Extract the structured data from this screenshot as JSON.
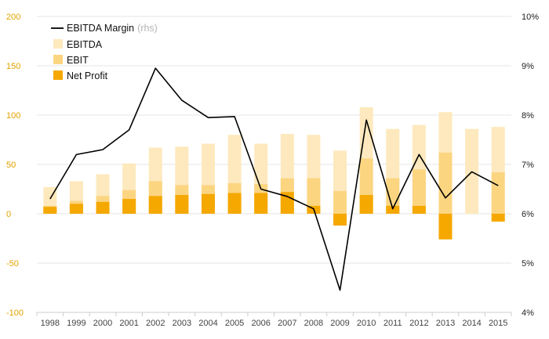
{
  "chart_data": {
    "type": "bar",
    "stacking": "overlap",
    "categories": [
      "1998",
      "1999",
      "2000",
      "2001",
      "2002",
      "2003",
      "2004",
      "2005",
      "2006",
      "2007",
      "2008",
      "2009",
      "2010",
      "2011",
      "2012",
      "2013",
      "2014",
      "2015"
    ],
    "series": [
      {
        "name": "EBITDA",
        "color": "#fde9bd",
        "axis": "left",
        "values": [
          27,
          33,
          40,
          51,
          67,
          68,
          71,
          80,
          71,
          81,
          80,
          64,
          108,
          86,
          90,
          103,
          86,
          88
        ]
      },
      {
        "name": "EBIT",
        "color": "#fcd581",
        "axis": "left",
        "values": [
          8,
          13,
          18,
          24,
          33,
          29,
          29,
          31,
          30,
          36,
          36,
          23,
          56,
          36,
          45,
          62,
          0,
          42
        ]
      },
      {
        "name": "Net Profit",
        "color": "#f5a800",
        "axis": "left",
        "values": [
          7,
          10,
          12,
          15,
          18,
          19,
          20,
          21,
          21,
          22,
          8,
          -12,
          19,
          8,
          8,
          -26,
          0,
          -8
        ]
      }
    ],
    "line": {
      "name": "EBITDA Margin",
      "name_suffix": "(rhs)",
      "color": "#000000",
      "axis": "right",
      "values": [
        6.3,
        7.2,
        7.3,
        7.7,
        8.95,
        8.3,
        7.95,
        7.97,
        6.5,
        6.35,
        6.1,
        4.45,
        7.9,
        6.1,
        7.2,
        6.32,
        6.85,
        6.57
      ]
    },
    "y_left": {
      "lim": [
        -100,
        200
      ],
      "ticks": [
        200,
        150,
        100,
        50,
        0,
        -50,
        -100
      ]
    },
    "y_right": {
      "lim": [
        4,
        10
      ],
      "ticks": [
        "10%",
        "9%",
        "8%",
        "7%",
        "6%",
        "5%",
        "4%"
      ],
      "tick_values": [
        10,
        9,
        8,
        7,
        6,
        5,
        4
      ]
    },
    "title": "",
    "xlabel": "",
    "ylabel": "",
    "grid": true,
    "legend": "top-left"
  }
}
